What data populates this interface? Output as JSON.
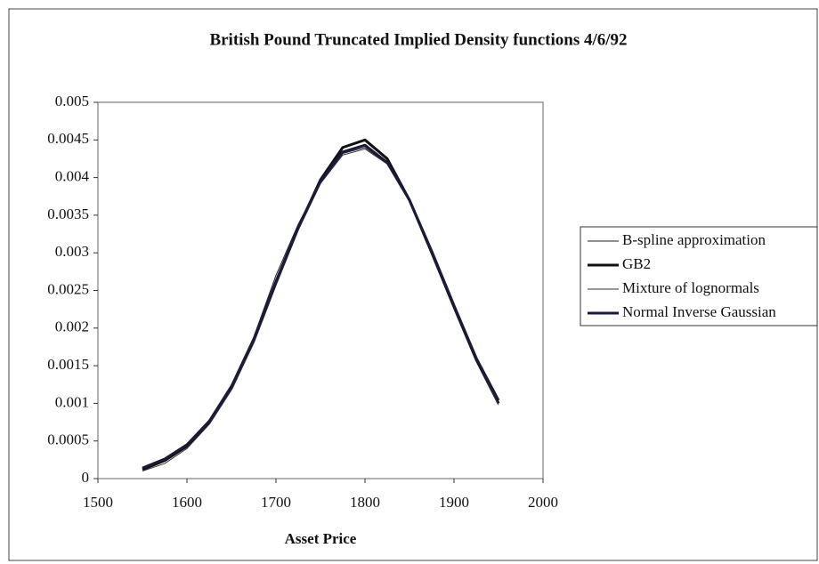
{
  "chart_data": {
    "type": "line",
    "title": "British Pound Truncated Implied Density functions 4/6/92",
    "x_label": "Asset Price",
    "x": [
      1550,
      1575,
      1600,
      1625,
      1650,
      1675,
      1700,
      1725,
      1750,
      1775,
      1800,
      1825,
      1850,
      1875,
      1900,
      1925,
      1950
    ],
    "series": [
      {
        "name": "B-spline approximation",
        "color": "#222222",
        "line_width": 1,
        "values": [
          0.00015,
          0.00027,
          0.00046,
          0.00078,
          0.00125,
          0.00188,
          0.0027,
          0.00338,
          0.00395,
          0.00432,
          0.0044,
          0.00418,
          0.0037,
          0.00302,
          0.0023,
          0.0016,
          0.00102
        ]
      },
      {
        "name": "GB2",
        "color": "#111111",
        "line_width": 3,
        "values": [
          0.00012,
          0.00024,
          0.00043,
          0.00074,
          0.0012,
          0.00183,
          0.0026,
          0.00333,
          0.00397,
          0.0044,
          0.0045,
          0.00425,
          0.0037,
          0.003,
          0.00228,
          0.00158,
          0.001
        ]
      },
      {
        "name": "Mixture of lognormals",
        "color": "#333333",
        "line_width": 1,
        "values": [
          0.0001,
          0.0002,
          0.0004,
          0.00072,
          0.00118,
          0.0018,
          0.00258,
          0.0033,
          0.00392,
          0.0043,
          0.00438,
          0.00418,
          0.00368,
          0.003,
          0.00228,
          0.00158,
          0.00098
        ]
      },
      {
        "name": "Normal Inverse Gaussian",
        "color": "#1a1a3a",
        "line_width": 3,
        "values": [
          0.00014,
          0.00026,
          0.00045,
          0.00076,
          0.00122,
          0.00185,
          0.00262,
          0.00334,
          0.00395,
          0.00434,
          0.00443,
          0.0042,
          0.0037,
          0.00302,
          0.0023,
          0.0016,
          0.00104
        ]
      }
    ],
    "xlim": [
      1500,
      2000
    ],
    "xticks": [
      1500,
      1600,
      1700,
      1800,
      1900,
      2000
    ],
    "ylim": [
      0,
      0.005
    ],
    "yticks": [
      0,
      0.0005,
      0.001,
      0.0015,
      0.002,
      0.0025,
      0.003,
      0.0035,
      0.004,
      0.0045,
      0.005
    ],
    "grid": false,
    "legend": "right"
  }
}
